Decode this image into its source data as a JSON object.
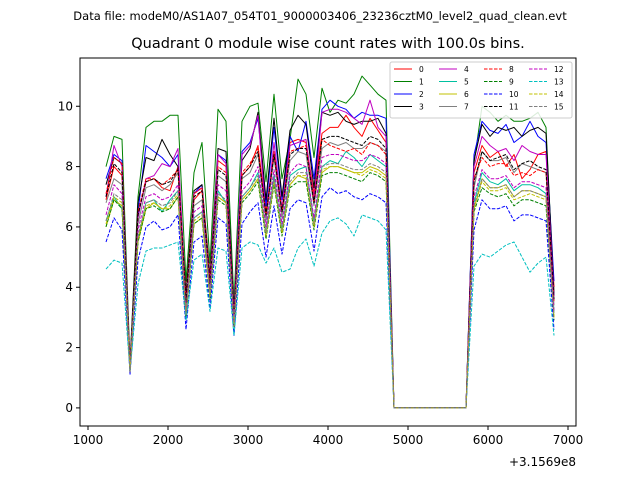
{
  "suptitle": "Data file: modeM0/AS1A07_054T01_9000003406_23236cztM0_level2_quad_clean.evt",
  "chart_data": {
    "type": "line",
    "title": "Quadrant 0 module wise count rates with 100.0s bins.",
    "xlabel": "",
    "ylabel": "",
    "x_offset_label": "+3.1569e8",
    "xlim": [
      900,
      7100
    ],
    "ylim": [
      -0.6,
      11.6
    ],
    "xticks": [
      1000,
      2000,
      3000,
      4000,
      5000,
      6000,
      7000
    ],
    "xtick_labels": [
      "1000",
      "2000",
      "3000",
      "4000",
      "5000",
      "6000",
      "7000"
    ],
    "yticks": [
      0,
      2,
      4,
      6,
      8,
      10
    ],
    "ytick_labels": [
      "0",
      "2",
      "4",
      "6",
      "8",
      "10"
    ],
    "grid": false,
    "legend_position": "top-right",
    "x": [
      1225,
      1325,
      1425,
      1525,
      1625,
      1725,
      1825,
      1925,
      2025,
      2125,
      2225,
      2325,
      2425,
      2525,
      2625,
      2725,
      2825,
      2925,
      3025,
      3125,
      3225,
      3325,
      3425,
      3525,
      3625,
      3725,
      3825,
      3925,
      4025,
      4125,
      4225,
      4325,
      4425,
      4525,
      4625,
      4725,
      4825,
      4925,
      5025,
      5125,
      5225,
      5325,
      5425,
      5525,
      5625,
      5725,
      5825,
      5925,
      6025,
      6125,
      6225,
      6325,
      6425,
      6525,
      6625,
      6725,
      6825
    ],
    "series": [
      {
        "name": "0",
        "color": "#ff0000",
        "dash": "solid",
        "values": [
          6.9,
          8.0,
          7.7,
          1.3,
          6.4,
          7.5,
          7.6,
          7.3,
          7.2,
          8.0,
          3.6,
          6.9,
          7.2,
          4.3,
          8.2,
          8.0,
          3.0,
          7.7,
          8.0,
          8.7,
          6.5,
          8.5,
          6.6,
          8.8,
          8.9,
          8.8,
          7.1,
          9.1,
          9.3,
          9.3,
          9.7,
          9.3,
          9.0,
          9.6,
          9.2,
          8.8,
          0.0,
          0.0,
          0.0,
          0.0,
          0.0,
          0.0,
          0.0,
          0.0,
          0.0,
          0.0,
          7.8,
          8.7,
          8.3,
          8.5,
          8.0,
          8.4,
          7.6,
          7.9,
          8.4,
          8.5,
          4.0
        ]
      },
      {
        "name": "1",
        "color": "#008000",
        "dash": "solid",
        "values": [
          8.0,
          9.0,
          8.9,
          1.5,
          7.0,
          9.3,
          9.5,
          9.5,
          9.7,
          9.7,
          4.2,
          7.8,
          8.8,
          4.8,
          9.9,
          9.5,
          3.5,
          9.5,
          10.0,
          10.1,
          7.5,
          10.4,
          7.6,
          8.9,
          10.9,
          10.4,
          8.3,
          10.6,
          9.8,
          10.2,
          10.1,
          10.4,
          11.0,
          10.7,
          10.4,
          10.2,
          0.0,
          0.0,
          0.0,
          0.0,
          0.0,
          0.0,
          0.0,
          0.0,
          0.0,
          0.0,
          8.1,
          10.0,
          9.8,
          9.5,
          9.7,
          9.5,
          9.5,
          9.6,
          9.8,
          9.3,
          3.7
        ]
      },
      {
        "name": "2",
        "color": "#0000ff",
        "dash": "solid",
        "values": [
          7.6,
          8.4,
          8.2,
          1.3,
          6.5,
          8.7,
          8.5,
          8.3,
          8.0,
          8.4,
          3.5,
          7.1,
          7.4,
          4.1,
          8.4,
          8.2,
          3.1,
          8.5,
          8.8,
          9.6,
          6.7,
          9.3,
          6.9,
          9.0,
          8.5,
          9.5,
          7.6,
          9.9,
          10.2,
          10.0,
          9.9,
          9.6,
          9.8,
          9.7,
          9.7,
          9.6,
          0.0,
          0.0,
          0.0,
          0.0,
          0.0,
          0.0,
          0.0,
          0.0,
          0.0,
          0.0,
          8.4,
          9.5,
          9.2,
          9.1,
          9.4,
          8.8,
          9.0,
          9.5,
          9.0,
          8.8,
          4.2
        ]
      },
      {
        "name": "3",
        "color": "#000000",
        "dash": "solid",
        "values": [
          7.4,
          8.3,
          8.1,
          1.4,
          6.8,
          8.3,
          8.2,
          8.9,
          8.4,
          8.0,
          3.8,
          7.2,
          7.4,
          4.4,
          8.6,
          8.5,
          3.2,
          8.2,
          8.6,
          9.8,
          6.9,
          9.6,
          7.0,
          9.2,
          9.7,
          9.4,
          7.3,
          9.8,
          9.7,
          9.8,
          9.5,
          9.4,
          9.5,
          9.5,
          9.6,
          9.1,
          0.0,
          0.0,
          0.0,
          0.0,
          0.0,
          0.0,
          0.0,
          0.0,
          0.0,
          0.0,
          8.2,
          9.4,
          9.0,
          9.3,
          9.2,
          9.3,
          9.0,
          9.2,
          9.3,
          9.1,
          3.8
        ]
      },
      {
        "name": "4",
        "color": "#c000c0",
        "dash": "solid",
        "values": [
          7.0,
          8.7,
          8.0,
          1.4,
          6.3,
          7.6,
          7.7,
          8.1,
          8.0,
          8.6,
          3.4,
          7.1,
          7.3,
          4.2,
          8.4,
          8.1,
          3.1,
          8.4,
          8.7,
          9.7,
          6.3,
          8.8,
          6.6,
          8.7,
          8.8,
          8.9,
          6.9,
          9.8,
          9.9,
          9.9,
          9.8,
          9.6,
          9.4,
          10.2,
          9.3,
          9.0,
          0.0,
          0.0,
          0.0,
          0.0,
          0.0,
          0.0,
          0.0,
          0.0,
          0.0,
          0.0,
          8.0,
          9.0,
          8.7,
          8.5,
          8.6,
          8.2,
          8.7,
          8.5,
          8.4,
          8.4,
          3.7
        ]
      },
      {
        "name": "5",
        "color": "#00c0a0",
        "dash": "solid",
        "values": [
          6.2,
          7.0,
          6.6,
          1.3,
          5.6,
          6.8,
          6.9,
          6.5,
          6.9,
          7.2,
          3.0,
          6.3,
          6.5,
          3.8,
          7.2,
          6.8,
          2.8,
          7.0,
          7.3,
          7.8,
          5.8,
          7.7,
          5.9,
          7.7,
          7.9,
          8.0,
          6.2,
          8.0,
          8.2,
          8.1,
          8.5,
          8.3,
          8.0,
          8.4,
          8.2,
          8.0,
          0.0,
          0.0,
          0.0,
          0.0,
          0.0,
          0.0,
          0.0,
          0.0,
          0.0,
          0.0,
          6.8,
          7.8,
          7.5,
          7.4,
          7.6,
          7.2,
          7.4,
          7.4,
          7.3,
          7.1,
          3.2
        ]
      },
      {
        "name": "6",
        "color": "#c0c000",
        "dash": "solid",
        "values": [
          6.0,
          6.9,
          6.7,
          1.2,
          5.5,
          6.6,
          6.8,
          6.6,
          6.6,
          7.0,
          3.0,
          6.1,
          6.3,
          3.7,
          7.0,
          6.8,
          2.7,
          6.9,
          7.2,
          7.6,
          5.7,
          7.5,
          5.8,
          7.4,
          7.7,
          7.6,
          6.0,
          7.8,
          8.0,
          8.0,
          7.9,
          7.8,
          7.8,
          8.0,
          7.9,
          7.7,
          0.0,
          0.0,
          0.0,
          0.0,
          0.0,
          0.0,
          0.0,
          0.0,
          0.0,
          0.0,
          6.6,
          7.6,
          7.3,
          7.3,
          7.4,
          7.0,
          7.2,
          7.2,
          7.1,
          7.0,
          3.0
        ]
      },
      {
        "name": "7",
        "color": "#808080",
        "dash": "solid",
        "values": [
          6.8,
          7.6,
          7.4,
          1.3,
          6.1,
          7.3,
          7.4,
          7.2,
          7.4,
          7.8,
          3.3,
          6.7,
          6.9,
          4.0,
          7.7,
          7.5,
          2.9,
          7.6,
          7.8,
          8.4,
          6.2,
          8.3,
          6.3,
          8.2,
          8.5,
          8.4,
          6.7,
          8.6,
          8.8,
          8.7,
          8.8,
          8.6,
          8.6,
          8.8,
          8.7,
          8.5,
          0.0,
          0.0,
          0.0,
          0.0,
          0.0,
          0.0,
          0.0,
          0.0,
          0.0,
          0.0,
          7.3,
          8.5,
          8.2,
          8.2,
          8.3,
          7.8,
          8.1,
          8.0,
          7.9,
          7.8,
          3.4
        ]
      },
      {
        "name": "8",
        "color": "#ff0000",
        "dash": "dashed",
        "values": [
          7.1,
          8.3,
          8.1,
          1.3,
          6.5,
          7.6,
          7.6,
          7.4,
          7.6,
          7.9,
          3.6,
          7.1,
          7.3,
          4.2,
          8.0,
          7.8,
          3.0,
          7.8,
          8.1,
          8.6,
          6.4,
          8.4,
          6.5,
          8.5,
          8.6,
          8.7,
          6.8,
          8.9,
          8.7,
          8.6,
          8.5,
          8.6,
          8.4,
          8.8,
          8.7,
          8.4,
          0.0,
          0.0,
          0.0,
          0.0,
          0.0,
          0.0,
          0.0,
          0.0,
          0.0,
          0.0,
          7.6,
          8.3,
          8.0,
          8.1,
          8.1,
          7.7,
          7.8,
          7.7,
          7.9,
          7.8,
          3.5
        ]
      },
      {
        "name": "9",
        "color": "#008000",
        "dash": "dashed",
        "values": [
          6.0,
          6.9,
          6.6,
          1.2,
          5.5,
          6.6,
          6.7,
          6.5,
          6.6,
          7.0,
          3.0,
          6.1,
          6.3,
          3.6,
          6.9,
          6.7,
          2.7,
          6.8,
          7.1,
          7.5,
          5.6,
          7.4,
          5.7,
          7.3,
          7.5,
          7.5,
          5.9,
          7.7,
          7.8,
          7.8,
          7.7,
          7.6,
          7.5,
          7.8,
          7.7,
          7.5,
          0.0,
          0.0,
          0.0,
          0.0,
          0.0,
          0.0,
          0.0,
          0.0,
          0.0,
          0.0,
          6.5,
          7.3,
          7.1,
          7.0,
          7.1,
          6.7,
          6.9,
          6.9,
          6.8,
          6.7,
          2.9
        ]
      },
      {
        "name": "10",
        "color": "#0000ff",
        "dash": "dashed",
        "values": [
          5.5,
          6.3,
          5.9,
          1.1,
          4.9,
          6.0,
          6.2,
          5.9,
          6.0,
          6.4,
          2.6,
          5.5,
          5.7,
          3.3,
          6.3,
          6.1,
          2.4,
          6.1,
          6.5,
          6.8,
          5.0,
          6.7,
          5.1,
          6.6,
          6.9,
          6.8,
          5.2,
          7.0,
          7.3,
          7.1,
          7.2,
          7.0,
          6.9,
          7.1,
          7.0,
          6.8,
          0.0,
          0.0,
          0.0,
          0.0,
          0.0,
          0.0,
          0.0,
          0.0,
          0.0,
          0.0,
          5.9,
          6.9,
          6.6,
          6.6,
          6.7,
          6.2,
          6.4,
          6.4,
          6.3,
          6.2,
          2.6
        ]
      },
      {
        "name": "11",
        "color": "#000000",
        "dash": "dashed",
        "values": [
          7.0,
          8.1,
          7.8,
          1.3,
          6.4,
          7.5,
          7.6,
          7.4,
          7.5,
          7.9,
          3.5,
          7.0,
          7.2,
          4.1,
          7.9,
          7.7,
          3.0,
          7.7,
          8.0,
          8.5,
          6.4,
          8.4,
          6.5,
          8.4,
          8.6,
          8.6,
          6.8,
          8.9,
          9.0,
          9.0,
          8.9,
          8.8,
          8.7,
          9.0,
          8.9,
          8.6,
          0.0,
          0.0,
          0.0,
          0.0,
          0.0,
          0.0,
          0.0,
          0.0,
          0.0,
          0.0,
          7.5,
          8.5,
          8.2,
          8.3,
          8.4,
          7.9,
          8.1,
          8.2,
          8.0,
          7.9,
          3.6
        ]
      },
      {
        "name": "12",
        "color": "#c000c0",
        "dash": "dashed",
        "values": [
          6.4,
          7.4,
          7.1,
          1.2,
          5.9,
          7.0,
          7.1,
          6.9,
          7.0,
          7.4,
          3.2,
          6.5,
          6.7,
          3.9,
          7.4,
          7.2,
          2.8,
          7.2,
          7.5,
          8.0,
          6.0,
          7.9,
          6.1,
          7.8,
          8.1,
          8.0,
          6.3,
          8.3,
          8.4,
          8.4,
          8.3,
          8.2,
          8.2,
          8.4,
          8.3,
          8.1,
          0.0,
          0.0,
          0.0,
          0.0,
          0.0,
          0.0,
          0.0,
          0.0,
          0.0,
          0.0,
          7.0,
          7.9,
          7.6,
          7.6,
          7.7,
          7.3,
          7.5,
          7.5,
          7.4,
          7.3,
          3.2
        ]
      },
      {
        "name": "13",
        "color": "#00c0c0",
        "dash": "dashed",
        "values": [
          4.6,
          4.9,
          4.8,
          1.2,
          4.1,
          5.2,
          5.3,
          5.3,
          5.4,
          5.5,
          2.9,
          4.9,
          5.1,
          3.2,
          5.3,
          5.2,
          2.4,
          5.3,
          5.5,
          5.4,
          4.8,
          5.3,
          4.5,
          4.6,
          5.3,
          5.6,
          4.7,
          5.8,
          6.2,
          6.3,
          6.1,
          5.7,
          6.4,
          6.3,
          6.2,
          5.9,
          0.0,
          0.0,
          0.0,
          0.0,
          0.0,
          0.0,
          0.0,
          0.0,
          0.0,
          0.0,
          4.7,
          5.1,
          5.0,
          5.2,
          5.4,
          5.5,
          5.0,
          4.5,
          4.8,
          5.0,
          2.4
        ]
      },
      {
        "name": "14",
        "color": "#c0c000",
        "dash": "dashed",
        "values": [
          6.1,
          7.0,
          6.8,
          1.2,
          5.6,
          6.7,
          6.8,
          6.6,
          6.7,
          7.1,
          3.1,
          6.2,
          6.4,
          3.7,
          7.0,
          6.8,
          2.7,
          6.9,
          7.2,
          7.6,
          5.7,
          7.5,
          5.8,
          7.4,
          7.7,
          7.7,
          6.0,
          7.9,
          8.0,
          8.0,
          7.9,
          7.8,
          7.7,
          7.9,
          7.8,
          7.6,
          0.0,
          0.0,
          0.0,
          0.0,
          0.0,
          0.0,
          0.0,
          0.0,
          0.0,
          0.0,
          6.6,
          7.5,
          7.2,
          7.2,
          7.3,
          6.9,
          7.0,
          7.1,
          7.0,
          6.9,
          3.0
        ]
      },
      {
        "name": "15",
        "color": "#808080",
        "dash": "dashed",
        "values": [
          6.2,
          7.1,
          6.9,
          1.2,
          5.7,
          6.8,
          6.9,
          6.7,
          6.8,
          7.2,
          3.1,
          6.3,
          6.5,
          3.8,
          7.1,
          6.9,
          2.8,
          7.0,
          7.3,
          7.7,
          5.8,
          7.6,
          5.9,
          7.5,
          7.8,
          7.8,
          6.1,
          8.0,
          8.1,
          8.1,
          8.0,
          7.9,
          7.9,
          8.1,
          8.0,
          7.8,
          0.0,
          0.0,
          0.0,
          0.0,
          0.0,
          0.0,
          0.0,
          0.0,
          0.0,
          0.0,
          6.7,
          7.6,
          7.3,
          7.3,
          7.4,
          7.0,
          7.2,
          7.2,
          7.1,
          7.0,
          3.1
        ]
      }
    ]
  }
}
